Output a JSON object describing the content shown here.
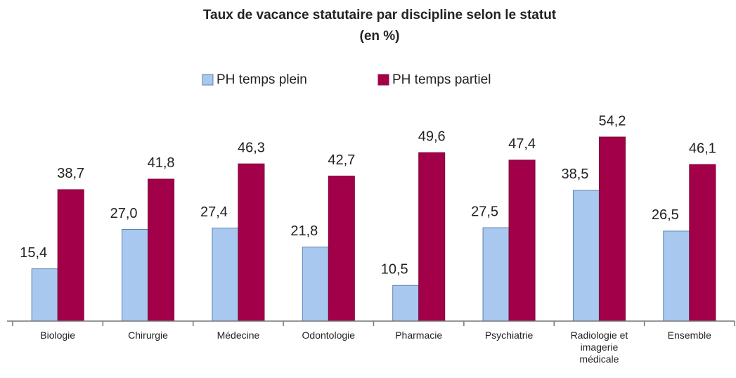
{
  "chart_data": {
    "type": "bar",
    "title": "Taux de vacance statutaire par discipline selon le statut",
    "subtitle": "(en %)",
    "categories": [
      "Biologie",
      "Chirurgie",
      "Médecine",
      "Odontologie",
      "Pharmacie",
      "Psychiatrie",
      "Radiologie et imagerie médicale",
      "Ensemble"
    ],
    "series": [
      {
        "name": "PH temps plein",
        "color": "#a8c8ef",
        "values": [
          15.4,
          27.0,
          27.4,
          21.8,
          10.5,
          27.5,
          38.5,
          26.5
        ],
        "value_labels": [
          "15,4",
          "27,0",
          "27,4",
          "21,8",
          "10,5",
          "27,5",
          "38,5",
          "26,5"
        ]
      },
      {
        "name": "PH temps partiel",
        "color": "#a3004a",
        "values": [
          38.7,
          41.8,
          46.3,
          42.7,
          49.6,
          47.4,
          54.2,
          46.1
        ],
        "value_labels": [
          "38,7",
          "41,8",
          "46,3",
          "42,7",
          "49,6",
          "47,4",
          "54,2",
          "46,1"
        ]
      }
    ],
    "ylim": [
      0,
      60
    ],
    "legend": "top"
  }
}
